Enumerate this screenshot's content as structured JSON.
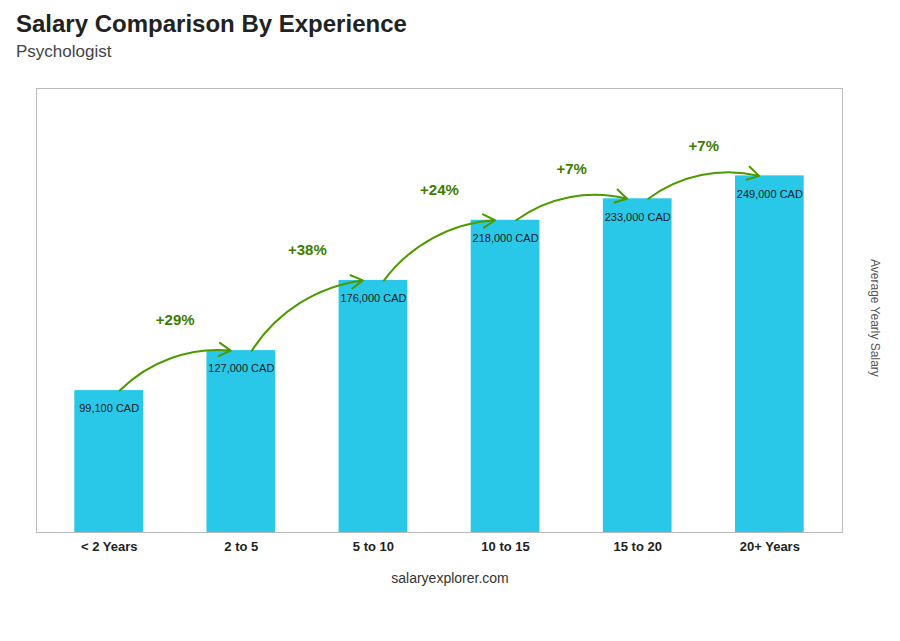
{
  "chart_data": {
    "type": "bar",
    "title": "Salary Comparison By Experience",
    "subtitle": "Psychologist",
    "ylabel": "Average Yearly Salary",
    "caption": "salaryexplorer.com",
    "categories": [
      "< 2 Years",
      "2 to 5",
      "5 to 10",
      "10 to 15",
      "15 to 20",
      "20+ Years"
    ],
    "values": [
      99100,
      127000,
      176000,
      218000,
      233000,
      249000
    ],
    "value_labels": [
      "99,100 CAD",
      "127,000 CAD",
      "176,000 CAD",
      "218,000 CAD",
      "233,000 CAD",
      "249,000 CAD"
    ],
    "data_labels": true,
    "annotations": [
      "+29%",
      "+38%",
      "+24%",
      "+7%",
      "+7%"
    ],
    "color": "#29c8e8",
    "ylim": [
      0,
      310000
    ],
    "tick_labels": "x"
  }
}
